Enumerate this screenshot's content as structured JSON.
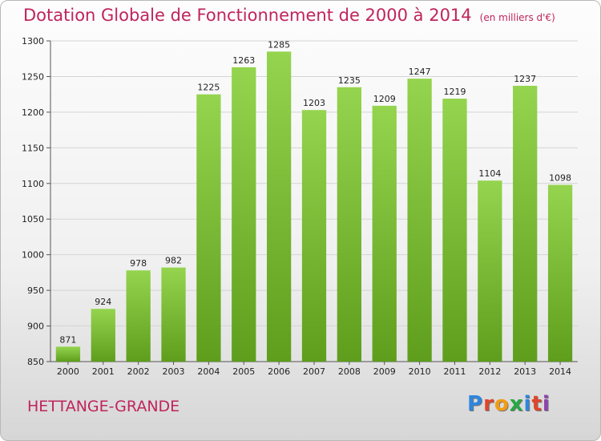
{
  "chart_data": {
    "type": "bar",
    "title": "Dotation Globale de Fonctionnement de 2000 à 2014",
    "subtitle": "(en milliers d'€)",
    "categories": [
      "2000",
      "2001",
      "2002",
      "2003",
      "2004",
      "2005",
      "2006",
      "2007",
      "2008",
      "2009",
      "2010",
      "2011",
      "2012",
      "2013",
      "2014"
    ],
    "values": [
      871,
      924,
      978,
      982,
      1225,
      1263,
      1285,
      1203,
      1235,
      1209,
      1247,
      1219,
      1104,
      1237,
      1098
    ],
    "ylim": [
      850,
      1300
    ],
    "yticks": [
      850,
      900,
      950,
      1000,
      1050,
      1100,
      1150,
      1200,
      1250,
      1300
    ],
    "xlabel": "",
    "ylabel": "",
    "grid": true,
    "bar_color": "#7cc23a"
  },
  "footer": {
    "place": "HETTANGE-GRANDE",
    "logo_letters": [
      {
        "ch": "P",
        "color": "#2e86de"
      },
      {
        "ch": "r",
        "color": "#e0452b"
      },
      {
        "ch": "o",
        "color": "#f39c12"
      },
      {
        "ch": "x",
        "color": "#27a844"
      },
      {
        "ch": "i",
        "color": "#2e86de"
      },
      {
        "ch": "t",
        "color": "#e0452b"
      },
      {
        "ch": "i",
        "color": "#8e44ad"
      }
    ]
  }
}
